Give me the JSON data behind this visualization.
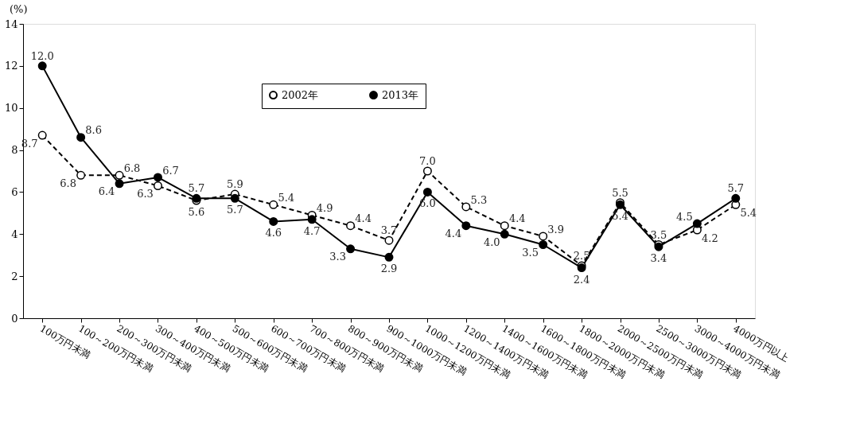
{
  "chart_data": {
    "type": "line",
    "ylabel": "(%)",
    "categories": [
      "100万円未満",
      "100～200万円未満",
      "200～300万円未満",
      "300～400万円未満",
      "400～500万円未満",
      "500～600万円未満",
      "600～700万円未満",
      "700～800万円未満",
      "800～900万円未満",
      "900～1000万円未満",
      "1000～1200万円未満",
      "1200～1400万円未満",
      "1400～1600万円未満",
      "1600～1800万円未満",
      "1800～2000万円未満",
      "2000～2500万円未満",
      "2500～3000万円未満",
      "3000～4000万円未満",
      "4000万円以上"
    ],
    "series": [
      {
        "name": "2002年",
        "color": "#000000",
        "line_style": "dashed",
        "values": [
          8.7,
          6.8,
          6.8,
          6.3,
          5.6,
          5.9,
          5.4,
          4.9,
          4.4,
          3.7,
          7.0,
          5.3,
          4.4,
          3.9,
          2.5,
          5.5,
          3.5,
          4.2,
          5.4
        ],
        "value_labels": [
          "8.7",
          "6.8",
          "6.8",
          "6.3",
          "5.6",
          "5.9",
          "5.4",
          "4.9",
          "4.4",
          "3.7",
          "7.0",
          "5.3",
          "4.4",
          "3.9",
          "2.5",
          "5.5",
          "3.5",
          "4.2",
          "5.4"
        ]
      },
      {
        "name": "2013年",
        "color": "#000000",
        "line_style": "solid",
        "values": [
          12.0,
          8.6,
          6.4,
          6.7,
          5.7,
          5.7,
          4.6,
          4.7,
          3.3,
          2.9,
          6.0,
          4.4,
          4.0,
          3.5,
          2.4,
          5.4,
          3.4,
          4.5,
          5.7
        ],
        "value_labels": [
          "12.0",
          "8.6",
          "6.4",
          "6.7",
          "5.7",
          "5.7",
          "4.6",
          "4.7",
          "3.3",
          "2.9",
          "6.0",
          "4.4",
          "4.0",
          "3.5",
          "2.4",
          "5.4",
          "3.4",
          "4.5",
          "5.7"
        ]
      }
    ],
    "ylim": [
      0,
      14
    ],
    "yticks": [
      0,
      2,
      4,
      6,
      8,
      10,
      12,
      14
    ],
    "grid": false,
    "legend": "top",
    "marker": "circle"
  }
}
